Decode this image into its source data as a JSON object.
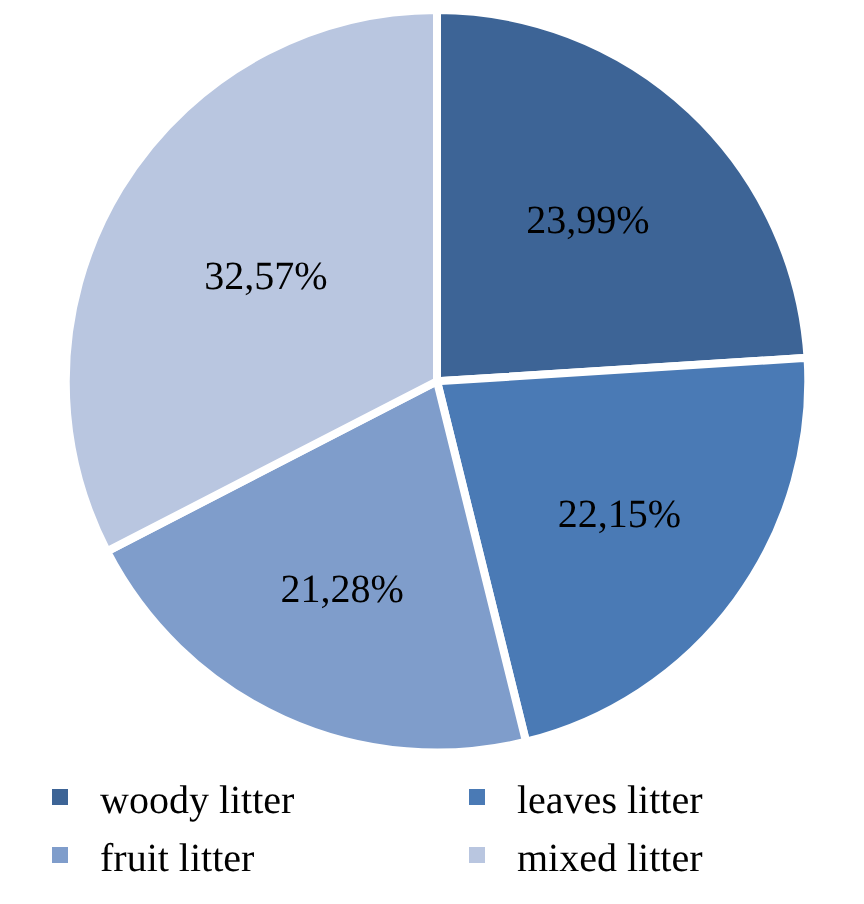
{
  "chart_data": {
    "type": "pie",
    "categories": [
      "woody litter",
      "leaves litter",
      "fruit litter",
      "mixed litter"
    ],
    "values": [
      23.99,
      22.15,
      21.28,
      32.57
    ],
    "value_labels": [
      "23,99%",
      "22,15%",
      "21,28%",
      "32,57%"
    ],
    "colors": [
      "#3d6496",
      "#4a7ab5",
      "#7f9dcb",
      "#b9c6e0"
    ],
    "legend": "bottom"
  }
}
